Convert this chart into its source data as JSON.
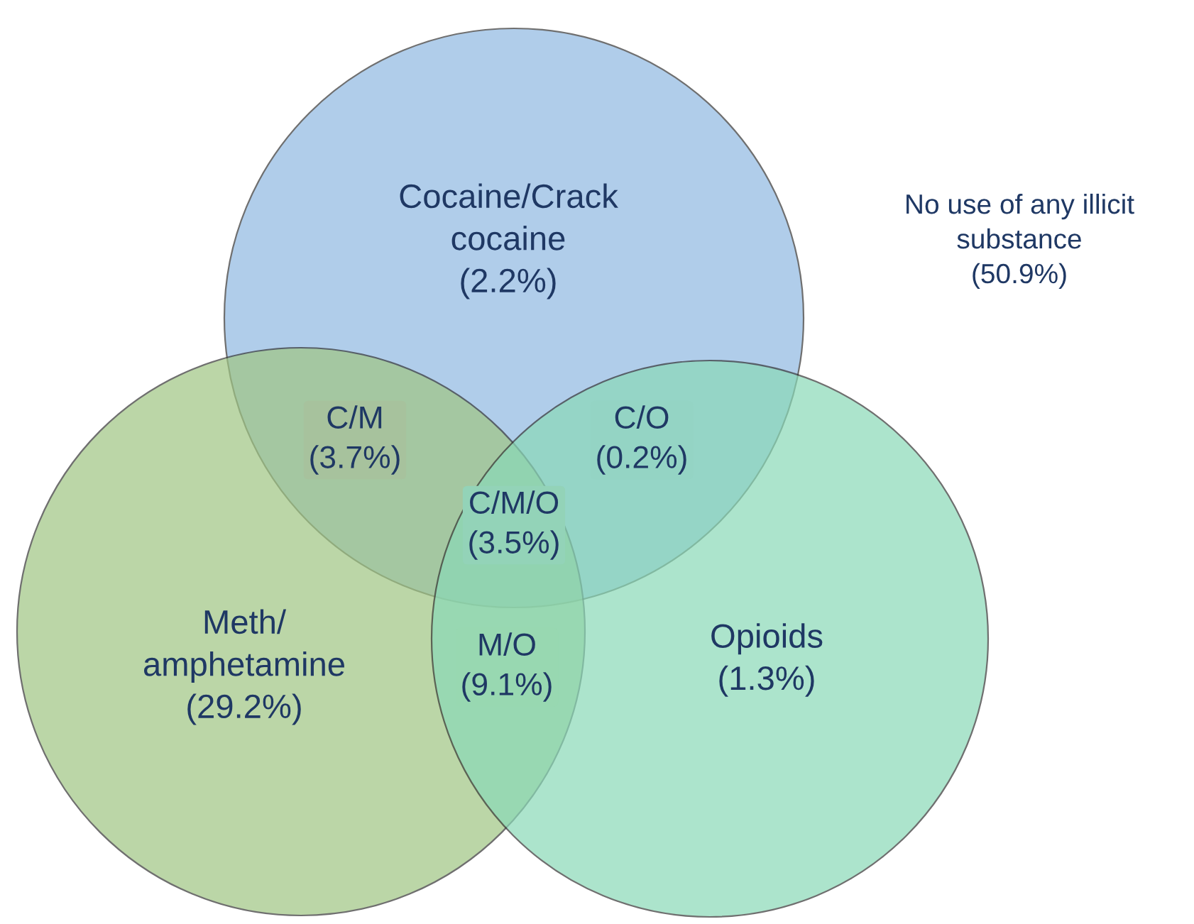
{
  "chart_data": {
    "type": "other",
    "categories": [
      "Cocaine/Crack\ncocaine",
      "Meth/\namphetamine",
      "Opioids",
      "C/M",
      "C/O",
      "M/O",
      "C/M/O",
      "No use of any illicit\nsubstance"
    ],
    "values": [
      2.2,
      29.2,
      1.3,
      3.7,
      0.2,
      9.1,
      3.5,
      50.9
    ],
    "value_labels": [
      "(2.2%)",
      "(29.2%)",
      "(1.3%)",
      "(3.7%)",
      "(0.2%)",
      "(9.1%)",
      "(3.5%)",
      "(50.9%)"
    ],
    "colors": [
      "#8fb8e2",
      "#9fc583",
      "#8ad9b7",
      "#a7c29d",
      "#94d4c4",
      "#98d8b1",
      "#93d3b8",
      "#ffffff"
    ]
  }
}
